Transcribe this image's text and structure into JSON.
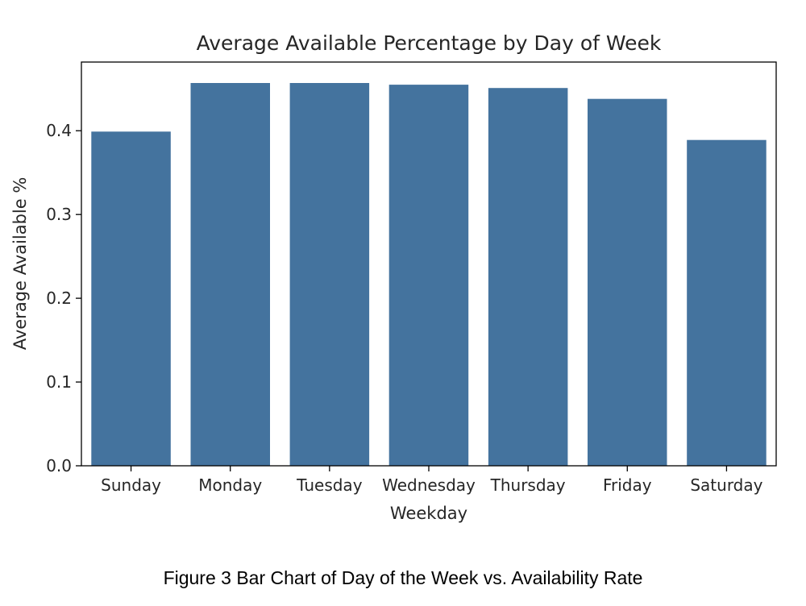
{
  "chart_data": {
    "type": "bar",
    "title": "Average Available Percentage by Day of Week",
    "xlabel": "Weekday",
    "ylabel": "Average Available %",
    "categories": [
      "Sunday",
      "Monday",
      "Tuesday",
      "Wednesday",
      "Thursday",
      "Friday",
      "Saturday"
    ],
    "values": [
      0.399,
      0.457,
      0.457,
      0.455,
      0.451,
      0.438,
      0.389
    ],
    "ylim": [
      0,
      0.482
    ],
    "yticks": [
      0.0,
      0.1,
      0.2,
      0.3,
      0.4
    ],
    "ytick_labels": [
      "0.0",
      "0.1",
      "0.2",
      "0.3",
      "0.4"
    ],
    "grid": false,
    "bar_color": "#44739e"
  },
  "caption": "Figure 3 Bar Chart of Day of the Week vs. Availability Rate"
}
